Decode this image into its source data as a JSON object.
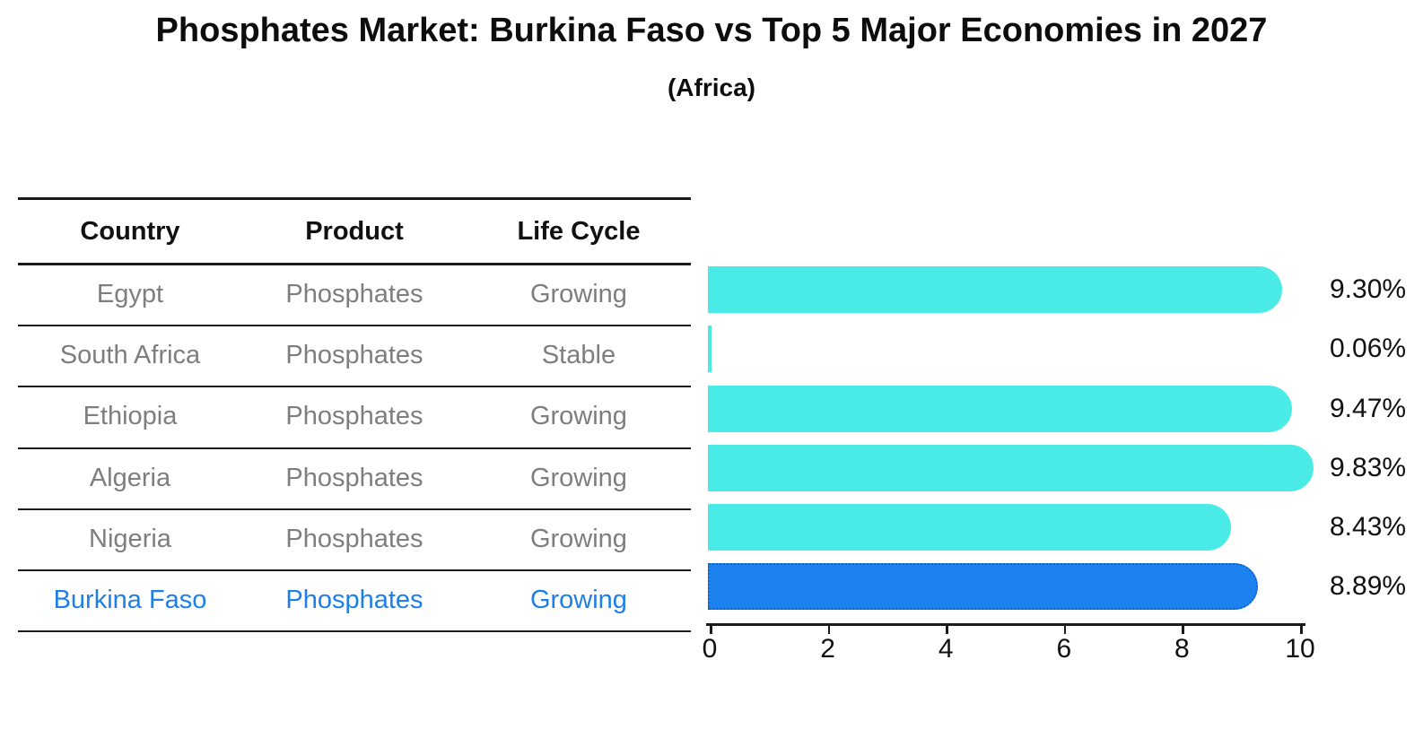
{
  "title": "Phosphates Market: Burkina Faso vs Top 5 Major Economies in 2027",
  "subtitle": "(Africa)",
  "table": {
    "columns": [
      "Country",
      "Product",
      "Life Cycle"
    ],
    "rows": [
      {
        "country": "Egypt",
        "product": "Phosphates",
        "life_cycle": "Growing",
        "highlight": false
      },
      {
        "country": "South Africa",
        "product": "Phosphates",
        "life_cycle": "Stable",
        "highlight": false
      },
      {
        "country": "Ethiopia",
        "product": "Phosphates",
        "life_cycle": "Growing",
        "highlight": false
      },
      {
        "country": "Algeria",
        "product": "Phosphates",
        "life_cycle": "Growing",
        "highlight": false
      },
      {
        "country": "Nigeria",
        "product": "Phosphates",
        "life_cycle": "Growing",
        "highlight": false
      },
      {
        "country": "Burkina Faso",
        "product": "Phosphates",
        "life_cycle": "Growing",
        "highlight": true
      }
    ]
  },
  "chart_data": {
    "type": "bar",
    "orientation": "horizontal",
    "categories": [
      "Egypt",
      "South Africa",
      "Ethiopia",
      "Algeria",
      "Nigeria",
      "Burkina Faso"
    ],
    "values": [
      9.3,
      0.06,
      9.47,
      9.83,
      8.43,
      8.89
    ],
    "value_labels": [
      "9.30%",
      "0.06%",
      "9.47%",
      "9.83%",
      "8.43%",
      "8.89%"
    ],
    "highlight_category": "Burkina Faso",
    "x_ticks": [
      "0",
      "2",
      "4",
      "6",
      "8",
      "10"
    ],
    "x_tick_values": [
      0,
      2,
      4,
      6,
      8,
      10
    ],
    "xlim": [
      0,
      10
    ],
    "grid": false,
    "legend": "none",
    "colors": {
      "bar": "#4aeae6",
      "highlight_bar": "#1c82f0",
      "highlight_border": "#1262c4",
      "value_label": "#111111",
      "table_text": "#7e7e7e",
      "highlight_text": "#1f7fe8"
    }
  }
}
